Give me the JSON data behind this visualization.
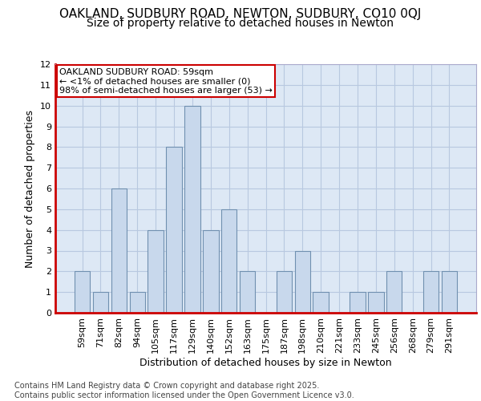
{
  "title1": "OAKLAND, SUDBURY ROAD, NEWTON, SUDBURY, CO10 0QJ",
  "title2": "Size of property relative to detached houses in Newton",
  "xlabel": "Distribution of detached houses by size in Newton",
  "ylabel": "Number of detached properties",
  "categories": [
    "59sqm",
    "71sqm",
    "82sqm",
    "94sqm",
    "105sqm",
    "117sqm",
    "129sqm",
    "140sqm",
    "152sqm",
    "163sqm",
    "175sqm",
    "187sqm",
    "198sqm",
    "210sqm",
    "221sqm",
    "233sqm",
    "245sqm",
    "256sqm",
    "268sqm",
    "279sqm",
    "291sqm"
  ],
  "values": [
    2,
    1,
    6,
    1,
    4,
    8,
    10,
    4,
    5,
    2,
    0,
    2,
    3,
    1,
    0,
    1,
    1,
    2,
    0,
    2,
    2
  ],
  "bar_color": "#c8d8ec",
  "bar_edge_color": "#7090b0",
  "highlight_bar_color": "#d0a0a0",
  "annotation_text": "OAKLAND SUDBURY ROAD: 59sqm\n← <1% of detached houses are smaller (0)\n98% of semi-detached houses are larger (53) →",
  "annotation_box_color": "#ffffff",
  "annotation_box_edge": "#cc0000",
  "ylim": [
    0,
    12
  ],
  "yticks": [
    0,
    1,
    2,
    3,
    4,
    5,
    6,
    7,
    8,
    9,
    10,
    11,
    12
  ],
  "grid_color": "#b8c8e0",
  "bg_color": "#dde8f5",
  "footer_text": "Contains HM Land Registry data © Crown copyright and database right 2025.\nContains public sector information licensed under the Open Government Licence v3.0.",
  "title1_fontsize": 11,
  "title2_fontsize": 10,
  "tick_fontsize": 8,
  "ylabel_fontsize": 9,
  "xlabel_fontsize": 9,
  "footer_fontsize": 7,
  "annotation_fontsize": 8
}
